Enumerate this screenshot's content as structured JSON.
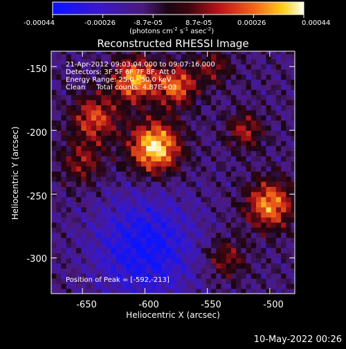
{
  "colorbar": {
    "tick_labels": [
      "-0.00044",
      "-0.00026",
      "-8.7e-05",
      "8.7e-05",
      "0.00026",
      "0.00044"
    ],
    "unit_prefix": "(photons cm",
    "unit_exp1": "-2",
    "unit_mid": " s",
    "unit_exp2": "-1",
    "unit_mid2": " asec",
    "unit_exp3": "-2",
    "unit_suffix": ")",
    "range": [
      -0.00044,
      0.00044
    ]
  },
  "annotation": {
    "line1": "21-Apr-2012 09:03:04.000 to 09:07:16.000",
    "line2": "Detectors: 3F 5F 6F 7F 8F, Att 0",
    "line3": "Energy Range: 25.0 - 50.0 keV",
    "line4": "Clean     Total counts: 4.87E+03",
    "peak": "Position of Peak = [-592,-213]"
  },
  "footer_timestamp": "10-May-2022 00:26",
  "chart_data": {
    "type": "heatmap",
    "title": "Reconstructed RHESSI Image",
    "xlabel": "Heliocentric X (arcsec)",
    "ylabel": "Heliocentric Y (arcsec)",
    "xlim": [
      -675,
      -480
    ],
    "ylim": [
      -328,
      -138
    ],
    "x_ticks": [
      -650,
      -600,
      -550,
      -500
    ],
    "y_ticks": [
      -150,
      -200,
      -250,
      -300
    ],
    "x_tick_labels": [
      "-650",
      "-600",
      "-550",
      "-500"
    ],
    "y_tick_labels": [
      "-150",
      "-200",
      "-250",
      "-300"
    ],
    "peak_position": [
      -592,
      -213
    ],
    "colormap": "blue-purple-red-yellow-white",
    "sources": [
      {
        "x": -592,
        "y": -213,
        "sigma": 14,
        "amp": 1.0
      },
      {
        "x": -608,
        "y": -160,
        "sigma": 12,
        "amp": 0.82
      },
      {
        "x": -575,
        "y": -165,
        "sigma": 11,
        "amp": 0.7
      },
      {
        "x": -640,
        "y": -190,
        "sigma": 13,
        "amp": 0.6
      },
      {
        "x": -500,
        "y": -258,
        "sigma": 13,
        "amp": 0.78
      },
      {
        "x": -520,
        "y": -200,
        "sigma": 10,
        "amp": 0.45
      },
      {
        "x": -535,
        "y": -300,
        "sigma": 11,
        "amp": 0.4
      },
      {
        "x": -650,
        "y": -225,
        "sigma": 12,
        "amp": 0.4
      },
      {
        "x": -545,
        "y": -150,
        "sigma": 10,
        "amp": 0.35
      }
    ],
    "negative_region": {
      "x": -600,
      "y": -292,
      "sigma": 28,
      "amp": 0.55
    }
  }
}
